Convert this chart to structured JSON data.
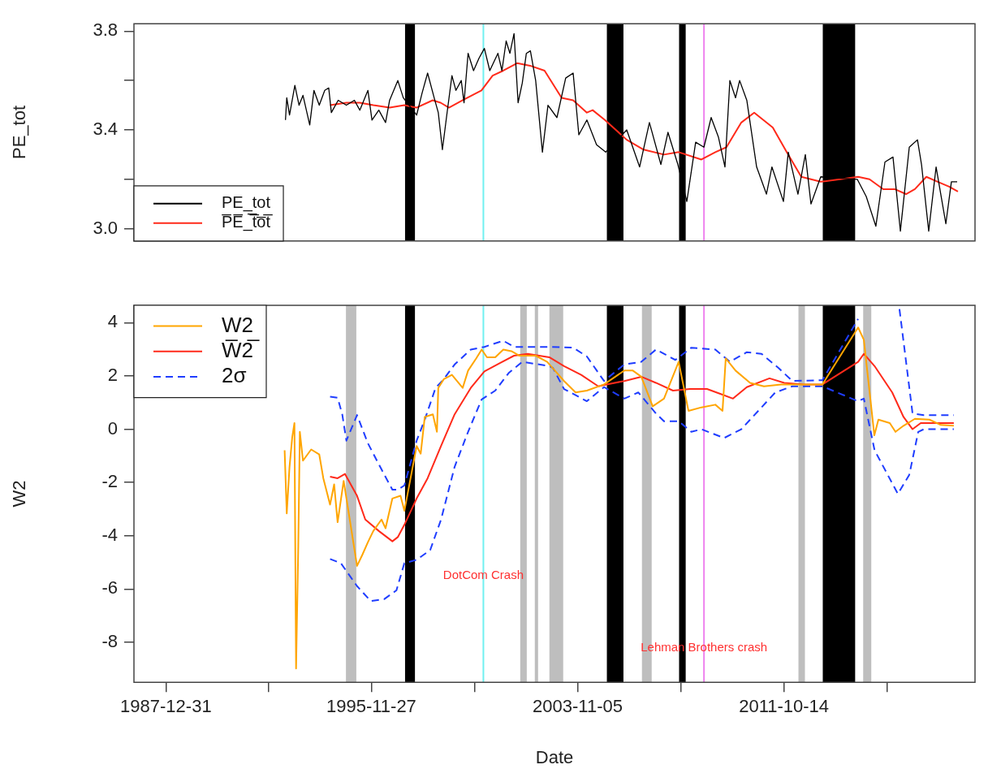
{
  "chart_data": [
    {
      "type": "line",
      "ylabel": "PE_tot",
      "xlim": [
        "1986-10-08",
        "2019-02-20"
      ],
      "ylim": [
        2.95,
        3.83
      ],
      "yticks": [
        {
          "value": 3,
          "label": "3.0"
        },
        {
          "value": 3.2,
          "label": null
        },
        {
          "value": 3.4,
          "label": "3.4"
        },
        {
          "value": 3.6,
          "label": null
        },
        {
          "value": 3.8,
          "label": "3.8"
        }
      ],
      "tick_labels": "y",
      "legend": "bottom left",
      "bands": [
        {
          "axis": "x",
          "from": "1997-03-15",
          "to": "1997-08-01",
          "color": "#000000"
        },
        {
          "axis": "x",
          "from": "2004-12-20",
          "to": "2005-08-10",
          "color": "#000000"
        },
        {
          "axis": "x",
          "from": "2007-10-01",
          "to": "2008-01-02",
          "color": "#000000"
        },
        {
          "axis": "x",
          "from": "2013-04-12",
          "to": "2014-07-11",
          "color": "#000000"
        }
      ],
      "ref_lines": [
        {
          "axis": "x",
          "value": "2000-03-20",
          "color": "#70f0f0"
        },
        {
          "axis": "x",
          "value": "2008-09-15",
          "color": "#ee82ee"
        }
      ],
      "series": [
        {
          "name": "PE_tot",
          "color": "#000000",
          "x": [
            "1992-08-07",
            "1992-08-25",
            "1992-10-03",
            "1992-12-17",
            "1993-02-14",
            "1993-04-10",
            "1993-07-14",
            "1993-09-11",
            "1993-11-25",
            "1994-02-10",
            "1994-04-07",
            "1994-05-14",
            "1994-08-18",
            "1994-12-11",
            "1995-04-03",
            "1995-06-18",
            "1995-10-10",
            "1995-12-06",
            "1996-03-11",
            "1996-06-14",
            "1996-08-10",
            "1996-12-03",
            "1997-02-18",
            "1997-08-25",
            "1997-11-10",
            "1998-01-26",
            "1998-04-28",
            "1998-06-25",
            "1998-08-22",
            "1998-10-18",
            "1999-01-03",
            "1999-02-28",
            "1999-05-14",
            "1999-06-22",
            "1999-08-18",
            "1999-11-03",
            "2000-01-18",
            "2000-04-03",
            "2000-06-18",
            "2000-10-10",
            "2000-12-06",
            "2001-02-03",
            "2001-03-28",
            "2001-05-25",
            "2001-07-21",
            "2001-09-18",
            "2001-11-14",
            "2002-01-10",
            "2002-03-25",
            "2002-06-28",
            "2002-09-14",
            "2003-01-18",
            "2003-05-21",
            "2003-09-03",
            "2003-11-22",
            "2004-03-14",
            "2004-07-28",
            "2004-12-03",
            "2005-09-25",
            "2006-03-25",
            "2006-08-10",
            "2007-01-18",
            "2007-04-28",
            "2007-09-14",
            "2008-01-18",
            "2008-05-21",
            "2008-09-14",
            "2008-12-25",
            "2009-04-07",
            "2009-07-07",
            "2009-09-14",
            "2009-12-03",
            "2010-01-29",
            "2010-05-10",
            "2010-09-25",
            "2011-02-10",
            "2011-04-28",
            "2011-10-07",
            "2011-12-14",
            "2012-04-28",
            "2012-08-10",
            "2012-10-28",
            "2013-03-14",
            "2014-08-10",
            "2014-12-14",
            "2015-04-28",
            "2015-09-03",
            "2015-12-25",
            "2016-04-07",
            "2016-08-10",
            "2016-12-03",
            "2017-01-29",
            "2017-05-10",
            "2017-08-22",
            "2018-01-06",
            "2018-03-25",
            "2018-06-14"
          ],
          "values": [
            3.44,
            3.53,
            3.46,
            3.58,
            3.5,
            3.54,
            3.42,
            3.56,
            3.5,
            3.56,
            3.57,
            3.47,
            3.52,
            3.5,
            3.52,
            3.48,
            3.56,
            3.44,
            3.48,
            3.43,
            3.52,
            3.6,
            3.53,
            3.46,
            3.55,
            3.63,
            3.53,
            3.47,
            3.32,
            3.45,
            3.62,
            3.56,
            3.6,
            3.51,
            3.71,
            3.64,
            3.69,
            3.73,
            3.64,
            3.71,
            3.64,
            3.76,
            3.71,
            3.79,
            3.51,
            3.59,
            3.71,
            3.72,
            3.6,
            3.31,
            3.5,
            3.45,
            3.61,
            3.63,
            3.38,
            3.44,
            3.34,
            3.31,
            3.4,
            3.25,
            3.43,
            3.26,
            3.39,
            3.26,
            3.11,
            3.35,
            3.33,
            3.45,
            3.37,
            3.25,
            3.6,
            3.53,
            3.6,
            3.52,
            3.25,
            3.14,
            3.25,
            3.11,
            3.31,
            3.14,
            3.3,
            3.1,
            3.21,
            3.2,
            3.13,
            3.01,
            3.27,
            3.29,
            2.99,
            3.33,
            3.36,
            3.26,
            2.99,
            3.25,
            3.02,
            3.19,
            3.19
          ]
        },
        {
          "name": "P̅E̅_̅t̅o̅t̅",
          "color": "#ff2a1a",
          "x": [
            "1994-04-26",
            "1994-12-11",
            "1995-06-18",
            "1995-12-25",
            "1996-08-10",
            "1997-03-05",
            "1997-08-22",
            "1998-04-07",
            "1998-07-28",
            "1998-11-22",
            "1999-06-03",
            "2000-02-22",
            "2000-07-28",
            "2000-12-25",
            "2001-07-07",
            "2002-01-06",
            "2002-07-28",
            "2003-03-25",
            "2003-09-03",
            "2004-03-14",
            "2004-06-03",
            "2004-11-22",
            "2005-09-25",
            "2006-05-21",
            "2007-03-03",
            "2007-09-25",
            "2008-08-10",
            "2009-02-22",
            "2009-07-28",
            "2010-02-22",
            "2010-08-22",
            "2011-05-10",
            "2011-11-22",
            "2012-06-14",
            "2013-03-14",
            "2014-08-22",
            "2015-01-29",
            "2015-08-10",
            "2016-01-18",
            "2016-06-25",
            "2016-10-28",
            "2017-04-07",
            "2017-09-14",
            "2018-02-22",
            "2018-06-25"
          ],
          "values": [
            3.5,
            3.51,
            3.51,
            3.5,
            3.49,
            3.5,
            3.49,
            3.52,
            3.51,
            3.49,
            3.52,
            3.56,
            3.62,
            3.64,
            3.67,
            3.66,
            3.64,
            3.53,
            3.52,
            3.47,
            3.48,
            3.44,
            3.36,
            3.32,
            3.3,
            3.31,
            3.28,
            3.31,
            3.33,
            3.43,
            3.47,
            3.41,
            3.31,
            3.21,
            3.19,
            3.21,
            3.2,
            3.16,
            3.16,
            3.14,
            3.16,
            3.21,
            3.19,
            3.17,
            3.15
          ]
        }
      ]
    },
    {
      "type": "line",
      "xlabel": "Date",
      "ylabel": "W2",
      "xlim": [
        "1986-10-08",
        "2019-02-20"
      ],
      "ylim": [
        -9.5,
        4.65
      ],
      "xticks": [
        {
          "value": "1987-12-31",
          "label": "1987-12-31"
        },
        {
          "value": "1991-12-14",
          "label": null
        },
        {
          "value": "1995-11-27",
          "label": "1995-11-27"
        },
        {
          "value": "1999-11-16",
          "label": null
        },
        {
          "value": "2003-11-05",
          "label": "2003-11-05"
        },
        {
          "value": "2007-10-25",
          "label": null
        },
        {
          "value": "2011-10-14",
          "label": "2011-10-14"
        },
        {
          "value": "2015-10-03",
          "label": null
        }
      ],
      "yticks": [
        -8,
        -6,
        -4,
        -2,
        0,
        2,
        4
      ],
      "legend": "top left",
      "bands": [
        {
          "axis": "x",
          "from": "1994-12-05",
          "to": "1995-04-30",
          "color": "#bebebe"
        },
        {
          "axis": "x",
          "from": "2001-08-20",
          "to": "2001-11-20",
          "color": "#bebebe"
        },
        {
          "axis": "x",
          "from": "2002-03-13",
          "to": "2002-04-28",
          "color": "#bebebe"
        },
        {
          "axis": "x",
          "from": "2002-10-04",
          "to": "2003-04-16",
          "color": "#bebebe"
        },
        {
          "axis": "x",
          "from": "2006-04-27",
          "to": "2006-09-11",
          "color": "#bebebe"
        },
        {
          "axis": "x",
          "from": "2012-05-05",
          "to": "2012-08-04",
          "color": "#bebebe"
        },
        {
          "axis": "x",
          "from": "2014-11-01",
          "to": "2015-02-23",
          "color": "#bebebe"
        },
        {
          "axis": "x",
          "from": "1997-03-15",
          "to": "1997-08-01",
          "color": "#000000"
        },
        {
          "axis": "x",
          "from": "2004-12-20",
          "to": "2005-08-10",
          "color": "#000000"
        },
        {
          "axis": "x",
          "from": "2007-10-01",
          "to": "2008-01-02",
          "color": "#000000"
        },
        {
          "axis": "x",
          "from": "2013-04-12",
          "to": "2014-07-11",
          "color": "#000000"
        }
      ],
      "ref_lines": [
        {
          "axis": "x",
          "value": "2000-03-20",
          "color": "#70f0f0"
        },
        {
          "axis": "x",
          "value": "2008-09-15",
          "color": "#ee82ee"
        }
      ],
      "annotations": [
        {
          "text": "DotCom Crash",
          "x": "2000-03-20",
          "y": -5.5
        },
        {
          "text": "Lehman Brothers crash",
          "x": "2008-09-15",
          "y": -8.2
        }
      ],
      "series": [
        {
          "name": "W2",
          "color": "#ffa500",
          "x": [
            "1992-07-26",
            "1992-08-25",
            "1992-10-03",
            "1992-11-10",
            "1992-12-11",
            "1993-01-03",
            "1993-02-03",
            "1993-02-25",
            "1993-04-10",
            "1993-08-03",
            "1993-11-25",
            "1994-01-21",
            "1994-04-26",
            "1994-06-22",
            "1994-08-10",
            "1994-11-03",
            "1995-05-10",
            "1995-07-26",
            "1995-10-10",
            "1995-12-25",
            "1996-04-18",
            "1996-06-14",
            "1996-09-18",
            "1997-01-10",
            "1997-03-06",
            "1997-08-25",
            "1997-10-21",
            "1997-12-17",
            "1998-04-10",
            "1998-06-06",
            "1998-06-25",
            "1998-09-11",
            "1999-01-03",
            "1999-06-03",
            "1999-08-18",
            "1999-12-11",
            "2000-02-25",
            "2000-05-10",
            "2000-09-03",
            "2000-12-25",
            "2001-04-18",
            "2001-08-10",
            "2002-03-25",
            "2002-09-03",
            "2003-04-28",
            "2003-10-07",
            "2004-03-14",
            "2004-11-10",
            "2005-08-22",
            "2005-12-20",
            "2006-04-18",
            "2006-09-25",
            "2007-03-03",
            "2007-09-25",
            "2008-02-10",
            "2008-08-10",
            "2009-02-22",
            "2009-06-03",
            "2009-07-18",
            "2009-12-03",
            "2010-06-25",
            "2011-01-06",
            "2011-09-03",
            "2012-02-10",
            "2013-04-07",
            "2014-08-22",
            "2014-11-10",
            "2015-04-07",
            "2015-06-03",
            "2015-11-10",
            "2016-01-29",
            "2016-05-21",
            "2016-10-28",
            "2017-05-21",
            "2017-10-28",
            "2018-04-28"
          ],
          "values": [
            -0.79,
            -3.16,
            -1.41,
            -0.3,
            0.23,
            -8.98,
            -4.38,
            -0.1,
            -1.18,
            -0.76,
            -0.95,
            -1.84,
            -2.83,
            -2.07,
            -3.49,
            -1.94,
            -5.13,
            -4.7,
            -4.24,
            -3.82,
            -3.39,
            -3.72,
            -2.6,
            -2.5,
            -3.06,
            -0.63,
            -0.92,
            0.46,
            0.56,
            -0.1,
            1.55,
            1.88,
            2.04,
            1.55,
            2.2,
            2.66,
            2.99,
            2.7,
            2.7,
            2.99,
            2.93,
            2.76,
            2.76,
            2.53,
            1.81,
            1.38,
            1.45,
            1.68,
            2.2,
            2.2,
            1.97,
            0.86,
            1.15,
            2.53,
            0.69,
            0.82,
            0.92,
            0.69,
            2.66,
            2.2,
            1.74,
            1.61,
            1.68,
            1.68,
            1.68,
            3.82,
            3.36,
            -0.23,
            0.36,
            0.23,
            -0.1,
            0.13,
            0.39,
            0.36,
            0.16,
            0.13
          ]
        },
        {
          "name": "W̅2̅",
          "color": "#ff2a1a",
          "x": [
            "1994-04-26",
            "1994-08-10",
            "1994-11-22",
            "1995-05-10",
            "1995-09-03",
            "1996-03-11",
            "1996-09-18",
            "1996-12-03",
            "1997-03-05",
            "1997-08-25",
            "1998-01-26",
            "1998-08-03",
            "1999-02-10",
            "1999-09-25",
            "2000-04-03",
            "2000-11-18",
            "2001-05-25",
            "2001-12-03",
            "2002-10-03",
            "2003-04-28",
            "2003-12-25",
            "2004-08-22",
            "2004-12-15",
            "2005-08-22",
            "2006-04-18",
            "2006-11-10",
            "2007-07-07",
            "2008-03-03",
            "2008-10-28",
            "2009-05-10",
            "2009-10-28",
            "2010-05-10",
            "2011-03-25",
            "2011-10-18",
            "2012-07-18",
            "2013-04-07",
            "2014-08-22",
            "2014-11-10",
            "2015-04-10",
            "2015-12-14",
            "2016-05-21",
            "2016-09-25",
            "2017-01-18",
            "2017-08-10",
            "2018-04-28"
          ],
          "values": [
            -1.78,
            -1.84,
            -1.68,
            -2.5,
            -3.39,
            -3.82,
            -4.21,
            -4.05,
            -3.59,
            -2.6,
            -1.84,
            -0.63,
            0.56,
            1.55,
            2.17,
            2.5,
            2.76,
            2.83,
            2.7,
            2.37,
            2.04,
            1.61,
            1.68,
            1.81,
            1.97,
            1.74,
            1.45,
            1.51,
            1.51,
            1.32,
            1.15,
            1.58,
            1.91,
            1.74,
            1.68,
            1.68,
            2.53,
            2.83,
            2.37,
            1.38,
            0.46,
            0.0,
            0.23,
            0.23,
            0.23
          ]
        },
        {
          "name": "2σ",
          "color": "#1f3dff",
          "line_style": "dashed",
          "x": [
            "1994-04-26",
            "1994-08-10",
            "1994-10-14",
            "1994-12-11",
            "1995-05-10",
            "1995-10-10",
            "1996-04-18",
            "1996-09-18",
            "1996-12-03",
            "1997-03-06",
            "1997-08-25",
            "1997-12-17",
            "1998-05-18",
            "1998-09-11",
            "1999-02-10",
            "1999-09-25",
            "2000-04-03",
            "2000-12-25",
            "2001-05-25",
            "2002-10-03",
            "2003-09-03",
            "2004-03-14",
            "2004-11-10",
            "2005-08-22",
            "2006-04-18",
            "2006-11-10",
            "2007-08-10",
            "2008-03-21",
            "2009-02-22",
            "2009-09-14",
            "2010-05-10",
            "2010-12-03",
            "2011-07-28",
            "2012-02-10",
            "2013-04-07",
            "2014-08-22",
            "2015-07-01",
            "2016-03-25",
            "2016-09-25",
            "2017-03-03",
            "2018-04-28"
          ],
          "values": [
            1.22,
            1.18,
            0.56,
            -0.43,
            0.53,
            -0.53,
            -1.51,
            -2.27,
            -2.27,
            -2.11,
            -0.43,
            0.36,
            1.55,
            1.88,
            2.43,
            2.99,
            3.09,
            3.32,
            3.09,
            3.09,
            3.06,
            2.73,
            1.81,
            2.43,
            2.53,
            2.99,
            2.6,
            3.06,
            2.99,
            2.53,
            2.89,
            2.83,
            2.3,
            1.81,
            1.84,
            4.14,
            null,
            4.51,
            0.59,
            0.53,
            0.53
          ]
        },
        {
          "color": "#1f3dff",
          "line_style": "dashed",
          "x": [
            "1994-04-26",
            "1994-09-25",
            "1995-05-10",
            "1995-11-18",
            "1996-05-25",
            "1996-11-14",
            "1997-03-05",
            "1997-08-25",
            "1998-03-03",
            "1998-08-03",
            "1999-02-10",
            "1999-08-18",
            "2000-02-25",
            "2000-09-03",
            "2001-03-11",
            "2001-09-18",
            "2002-10-03",
            "2002-11-22",
            "2003-04-28",
            "2004-03-14",
            "2004-11-10",
            "2005-08-22",
            "2006-03-08",
            "2006-11-10",
            "2007-03-03",
            "2007-09-25",
            "2008-03-21",
            "2008-08-10",
            "2009-06-25",
            "2010-02-22",
            "2010-12-03",
            "2011-06-14",
            "2012-02-10",
            "2013-04-07",
            "2014-08-22",
            "2014-11-10",
            "2015-04-10",
            "2016-03-03",
            "2016-08-10",
            "2016-12-14",
            "2017-03-03",
            "2018-04-28"
          ],
          "values": [
            -4.87,
            -5.03,
            -5.89,
            -6.45,
            -6.38,
            -6.05,
            -5.03,
            -4.9,
            -4.54,
            -3.39,
            -1.41,
            -0.1,
            1.12,
            1.45,
            2.11,
            2.53,
            2.37,
            2.3,
            1.51,
            1.05,
            1.58,
            1.15,
            1.38,
            0.59,
            0.3,
            0.3,
            -0.1,
            0.0,
            -0.33,
            0.0,
            0.82,
            1.38,
            1.61,
            1.61,
            1.05,
            1.15,
            -0.79,
            -2.43,
            -1.71,
            -0.1,
            0.0,
            0.0
          ]
        }
      ]
    }
  ]
}
